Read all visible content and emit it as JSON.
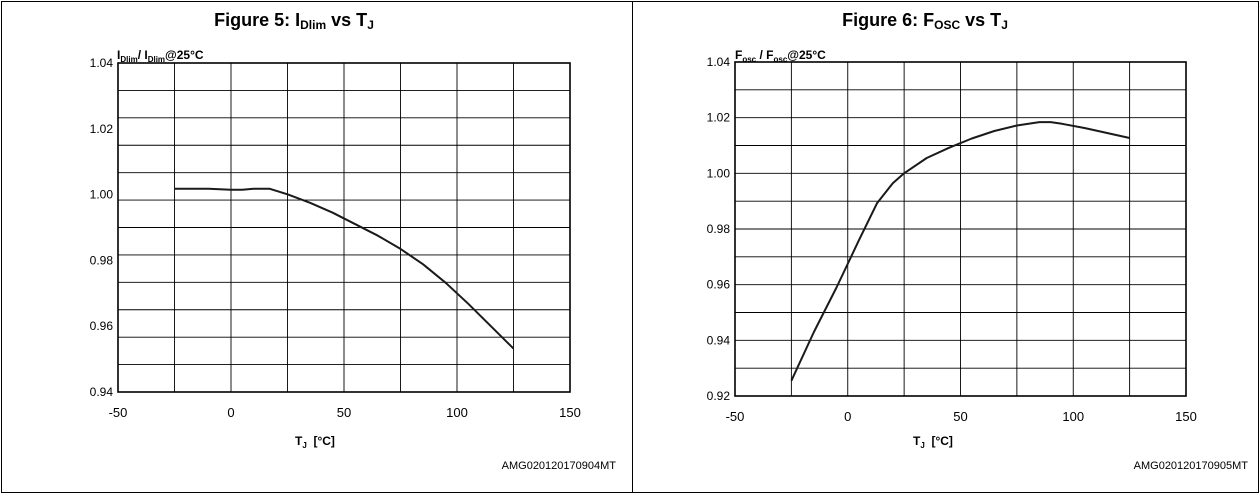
{
  "chart_data": [
    {
      "type": "line",
      "title": {
        "main": "Figure 5: I",
        "sub1": "Dlim",
        "mid": " vs T",
        "sub2": "J"
      },
      "ylabel": {
        "p1": "I",
        "s1": "Dlim",
        "p2": "/ I",
        "s2": "Dlim",
        "p3": "@25°C"
      },
      "xlabel": {
        "p1": "T",
        "s1": "J",
        "p2": "  [°C]"
      },
      "code": "AMG020120170904MT",
      "xlim": [
        -50,
        150
      ],
      "ylim": [
        0.94,
        1.04
      ],
      "xticks": [
        -50,
        0,
        50,
        100,
        150
      ],
      "xtick_labels": [
        "-50",
        "0",
        "50",
        "100",
        "150"
      ],
      "yticks": [
        0.94,
        0.96,
        0.98,
        1.0,
        1.02,
        1.04
      ],
      "ytick_labels": [
        "0.94",
        "0.96",
        "0.98",
        "1.00",
        "1.02",
        "1.04"
      ],
      "grid": true,
      "series": [
        {
          "x": [
            -25,
            -10,
            0,
            5,
            10,
            17,
            25,
            35,
            45,
            55,
            65,
            75,
            85,
            95,
            105,
            115,
            125
          ],
          "y": [
            1.0018,
            1.0018,
            1.0015,
            1.0015,
            1.0018,
            1.0018,
            1.0001,
            0.9975,
            0.9945,
            0.991,
            0.9875,
            0.9835,
            0.9788,
            0.9732,
            0.9668,
            0.96,
            0.9532
          ]
        }
      ]
    },
    {
      "type": "line",
      "title": {
        "main": "Figure 6: F",
        "sub1": "OSC",
        "mid": " vs T",
        "sub2": "J"
      },
      "ylabel": {
        "p1": "F",
        "s1": "osc",
        "p2": " / F",
        "s2": "osc",
        "p3": "@25°C"
      },
      "xlabel": {
        "p1": "T",
        "s1": "J",
        "p2": "  [°C]"
      },
      "code": "AMG020120170905MT",
      "xlim": [
        -50,
        150
      ],
      "ylim": [
        0.92,
        1.04
      ],
      "xticks": [
        -50,
        0,
        50,
        100,
        150
      ],
      "xtick_labels": [
        "-50",
        "0",
        "50",
        "100",
        "150"
      ],
      "yticks": [
        0.92,
        0.94,
        0.96,
        0.98,
        1.0,
        1.02,
        1.04
      ],
      "ytick_labels": [
        "0.92",
        "0.94",
        "0.96",
        "0.98",
        "1.00",
        "1.02",
        "1.04"
      ],
      "grid": true,
      "series": [
        {
          "x": [
            -25,
            -15,
            -5,
            5,
            13,
            20,
            25,
            35,
            45,
            55,
            65,
            75,
            85,
            90,
            95,
            105,
            115,
            125
          ],
          "y": [
            0.9255,
            0.943,
            0.959,
            0.976,
            0.9893,
            0.9965,
            1.0,
            1.0055,
            1.0092,
            1.0125,
            1.0152,
            1.0172,
            1.0184,
            1.0184,
            1.0178,
            1.0163,
            1.0145,
            1.0127
          ]
        }
      ]
    }
  ]
}
